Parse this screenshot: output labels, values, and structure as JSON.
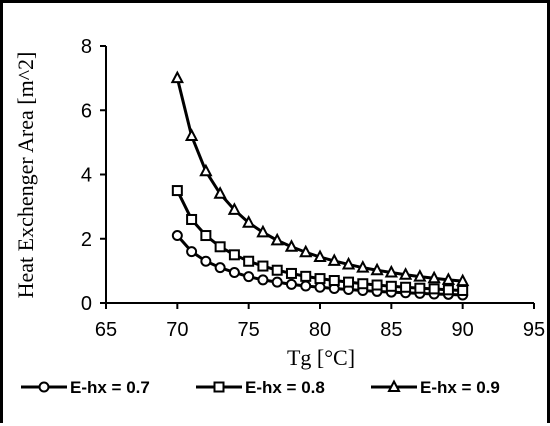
{
  "chart_data": {
    "type": "line",
    "title": "",
    "xlabel": "Tg [°C]",
    "ylabel": "Heat Exchenger Area [m^2]",
    "xlim": [
      65,
      95
    ],
    "ylim": [
      0,
      8
    ],
    "xticks": [
      65,
      70,
      75,
      80,
      85,
      90,
      95
    ],
    "yticks": [
      0,
      2,
      4,
      6,
      8
    ],
    "grid": false,
    "legend_position": "bottom",
    "x": [
      70,
      71,
      72,
      73,
      74,
      75,
      76,
      77,
      78,
      79,
      80,
      81,
      82,
      83,
      84,
      85,
      86,
      87,
      88,
      89,
      90
    ],
    "series": [
      {
        "name": "E-hx = 0.7",
        "marker": "circle",
        "values": [
          2.1,
          1.6,
          1.3,
          1.1,
          0.95,
          0.82,
          0.72,
          0.65,
          0.58,
          0.53,
          0.49,
          0.45,
          0.42,
          0.39,
          0.36,
          0.34,
          0.32,
          0.3,
          0.28,
          0.27,
          0.25
        ]
      },
      {
        "name": "E-hx = 0.8",
        "marker": "square",
        "values": [
          3.5,
          2.6,
          2.1,
          1.75,
          1.5,
          1.3,
          1.15,
          1.02,
          0.92,
          0.83,
          0.76,
          0.7,
          0.65,
          0.6,
          0.56,
          0.52,
          0.49,
          0.46,
          0.44,
          0.41,
          0.39
        ]
      },
      {
        "name": "E-hx = 0.9",
        "marker": "triangle",
        "values": [
          7.0,
          5.2,
          4.1,
          3.4,
          2.9,
          2.5,
          2.2,
          1.95,
          1.75,
          1.58,
          1.43,
          1.31,
          1.2,
          1.1,
          1.02,
          0.95,
          0.88,
          0.82,
          0.77,
          0.72,
          0.68
        ]
      }
    ]
  }
}
